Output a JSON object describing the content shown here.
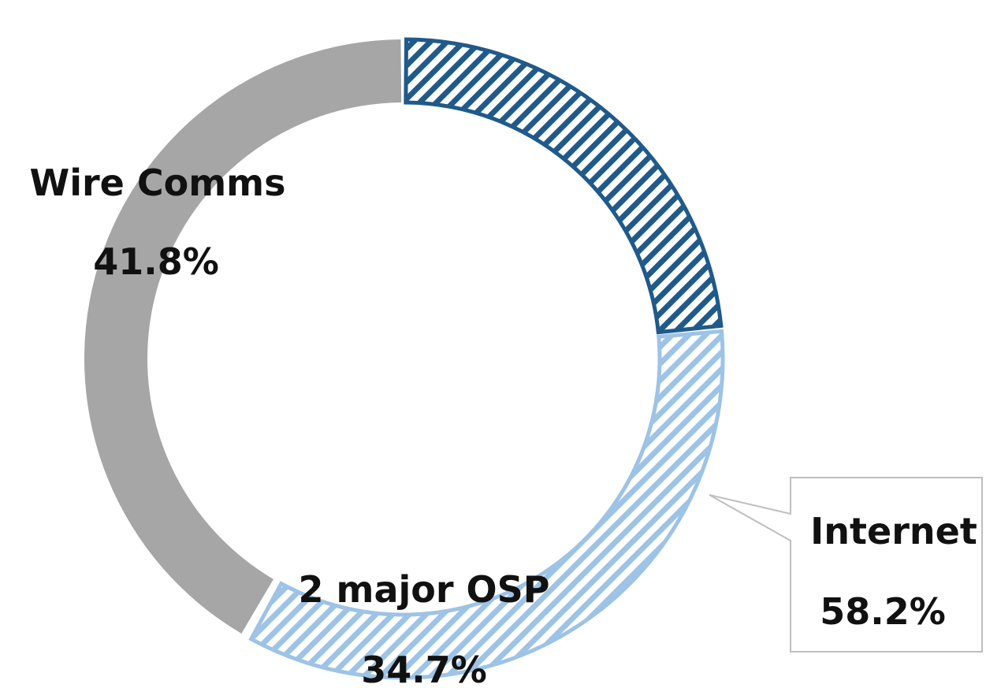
{
  "chart_data": {
    "type": "pie",
    "variant": "donut",
    "segments": [
      {
        "name": "Wire Comms",
        "value_label": "41.8%",
        "value": 41.8,
        "color": "#a6a6a6",
        "pattern": "solid"
      },
      {
        "name": "2 major OSP",
        "value_label": "34.7%",
        "value": 34.7,
        "color": "#9dc3e6",
        "pattern": "hatch"
      }
    ],
    "callout": {
      "name": "Internet",
      "value_label": "58.2%",
      "value": 58.2,
      "color": "#1f5a8a",
      "pattern": "hatch"
    },
    "legend": "none"
  }
}
